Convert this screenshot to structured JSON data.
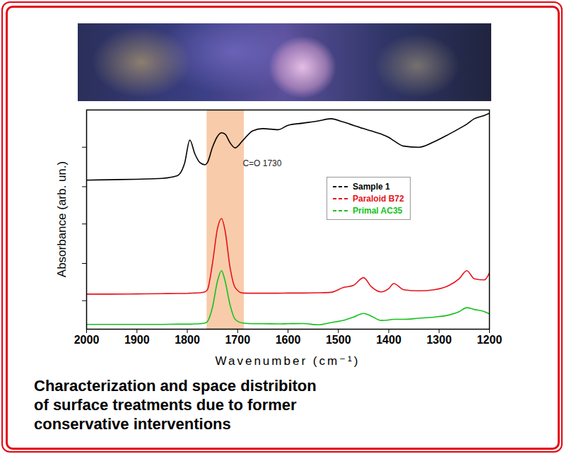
{
  "chart_data": {
    "type": "line",
    "title": "Characterization and space distribiton\nof surface treatments due to former\nconservative interventions",
    "xlabel": "Wavenumber (cm⁻¹)",
    "ylabel": "Absorbance (arb. un.)",
    "x": [
      2000,
      1950,
      1900,
      1850,
      1820,
      1805,
      1795,
      1785,
      1775,
      1765,
      1760,
      1750,
      1740,
      1732,
      1725,
      1715,
      1705,
      1690,
      1670,
      1650,
      1620,
      1600,
      1570,
      1540,
      1515,
      1490,
      1470,
      1450,
      1435,
      1415,
      1400,
      1390,
      1370,
      1340,
      1310,
      1280,
      1260,
      1245,
      1230,
      1210,
      1200
    ],
    "series": [
      {
        "name": "Sample 1",
        "color": "#000000",
        "values": [
          6.8,
          6.82,
          6.84,
          6.88,
          7.0,
          7.6,
          8.63,
          8.0,
          7.6,
          7.5,
          7.6,
          8.3,
          8.8,
          8.96,
          8.9,
          8.5,
          8.27,
          8.6,
          9.05,
          9.15,
          9.1,
          9.3,
          9.4,
          9.5,
          9.6,
          9.45,
          9.3,
          9.15,
          9.05,
          8.9,
          8.75,
          8.6,
          8.35,
          8.3,
          8.55,
          8.9,
          9.15,
          9.35,
          9.6,
          9.75,
          9.85
        ]
      },
      {
        "name": "Paraloid B72",
        "color": "#e8111b",
        "values": [
          1.6,
          1.6,
          1.61,
          1.62,
          1.63,
          1.63,
          1.64,
          1.65,
          1.66,
          1.7,
          1.8,
          3.0,
          4.6,
          5.05,
          4.5,
          2.8,
          1.9,
          1.65,
          1.64,
          1.64,
          1.64,
          1.65,
          1.65,
          1.66,
          1.68,
          1.9,
          2.0,
          2.35,
          1.95,
          1.7,
          1.85,
          2.08,
          1.8,
          1.75,
          1.8,
          2.0,
          2.3,
          2.67,
          2.3,
          2.25,
          2.57
        ]
      },
      {
        "name": "Primal AC35",
        "color": "#13c21b",
        "values": [
          0.22,
          0.22,
          0.22,
          0.22,
          0.23,
          0.23,
          0.23,
          0.24,
          0.25,
          0.28,
          0.35,
          1.0,
          2.2,
          2.67,
          2.2,
          1.1,
          0.45,
          0.28,
          0.25,
          0.25,
          0.24,
          0.25,
          0.26,
          0.2,
          0.3,
          0.4,
          0.55,
          0.72,
          0.6,
          0.4,
          0.42,
          0.45,
          0.45,
          0.5,
          0.55,
          0.65,
          0.8,
          0.98,
          0.9,
          0.8,
          0.7
        ]
      }
    ],
    "xlim": [
      2000,
      1200
    ],
    "xticks": [
      2000,
      1900,
      1800,
      1700,
      1600,
      1500,
      1400,
      1300,
      1200
    ],
    "ylim": [
      0,
      10
    ],
    "yticks": [
      1.3,
      3.0,
      4.8,
      6.5,
      8.3
    ],
    "tick_labels": "x",
    "grid": false,
    "legend": "right",
    "highlight": {
      "x": [
        1687,
        1761
      ],
      "color": "#f7c39b"
    },
    "annotations": [
      {
        "text": "C=O 1730",
        "x": 1690,
        "y": 7.55
      }
    ]
  }
}
